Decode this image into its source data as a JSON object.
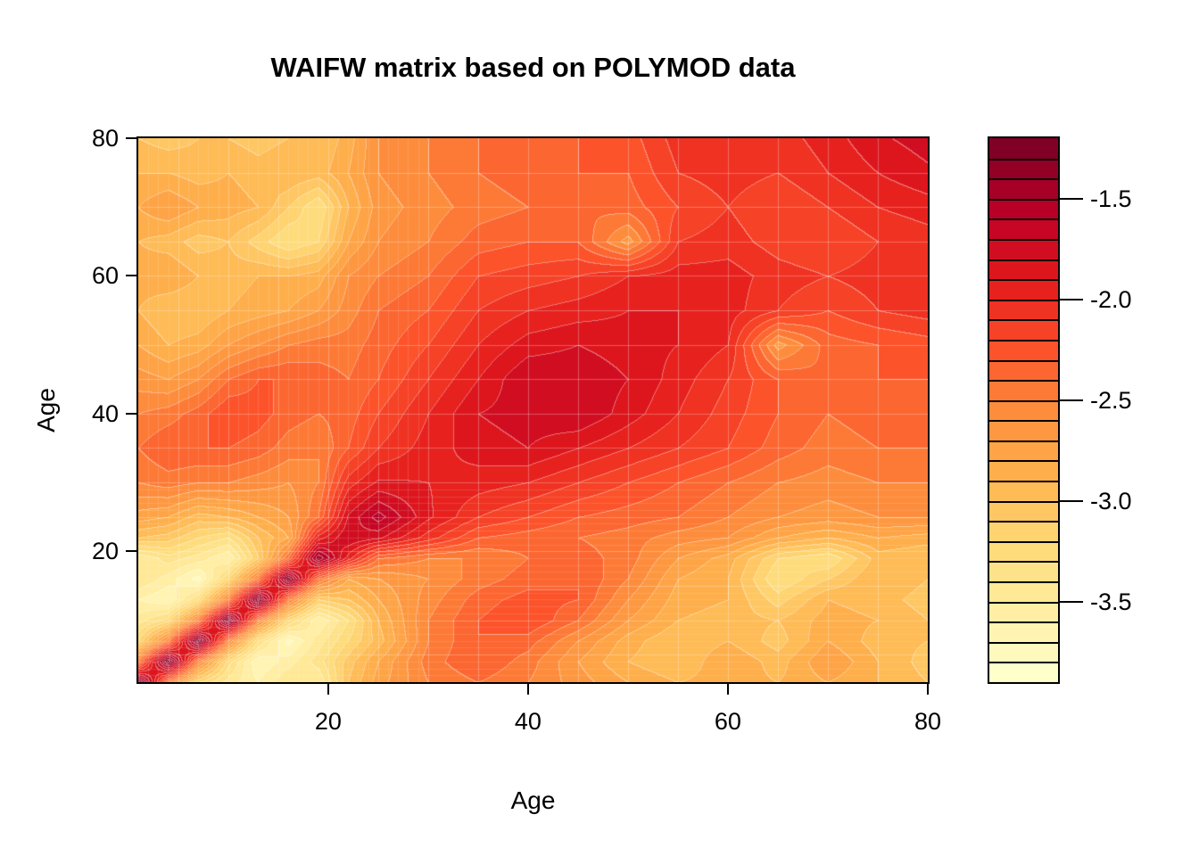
{
  "chart_data": {
    "type": "heatmap",
    "title": "WAIFW matrix based on POLYMOD data",
    "xlabel": "Age",
    "ylabel": "Age",
    "x_range": [
      1,
      80
    ],
    "y_range": [
      1,
      80
    ],
    "x_ticks": [
      20,
      40,
      60,
      80
    ],
    "y_ticks": [
      20,
      40,
      60,
      80
    ],
    "grid": {
      "fine_step": 1,
      "fine_max_age": 30,
      "coarse_step": 5,
      "line_color_fine": "rgba(255,255,255,0.13)",
      "line_color_coarse": "rgba(255,255,255,0.28)"
    },
    "colorbar": {
      "tick_labels": [
        "-1.5",
        "-2.0",
        "-2.5",
        "-3.0",
        "-3.5"
      ],
      "tick_values": [
        -1.5,
        -2.0,
        -2.5,
        -3.0,
        -3.5
      ],
      "level_min": -3.9,
      "level_max": -1.2,
      "level_step": 0.1,
      "n_blocks": 27,
      "palette": [
        "#FFFFCC",
        "#FFEDA0",
        "#FED976",
        "#FEB24C",
        "#FD8D3C",
        "#FC4E2A",
        "#E31A1C",
        "#BD0026",
        "#800026"
      ]
    },
    "ages": [
      1,
      4,
      7,
      10,
      13,
      16,
      19,
      22,
      25,
      30,
      35,
      40,
      45,
      50,
      55,
      60,
      65,
      70,
      75,
      80
    ],
    "matrix": [
      [
        -1.22,
        -2.5,
        -3.2,
        -3.45,
        -3.6,
        -3.4,
        -3.5,
        -3.0,
        -2.75,
        -2.5,
        -2.4,
        -2.5,
        -2.65,
        -2.8,
        -2.9,
        -2.85,
        -2.9,
        -2.8,
        -2.9,
        -3.0
      ],
      [
        -2.5,
        -1.22,
        -2.5,
        -3.25,
        -3.7,
        -3.55,
        -3.35,
        -3.05,
        -2.8,
        -2.45,
        -2.3,
        -2.45,
        -2.7,
        -2.9,
        -3.0,
        -2.8,
        -2.95,
        -2.7,
        -2.9,
        -3.05
      ],
      [
        -3.2,
        -2.5,
        -1.22,
        -2.5,
        -3.3,
        -3.75,
        -3.45,
        -3.2,
        -2.95,
        -2.5,
        -2.3,
        -2.35,
        -2.6,
        -2.85,
        -3.0,
        -2.9,
        -3.05,
        -2.8,
        -2.95,
        -3.0
      ],
      [
        -3.45,
        -3.25,
        -2.5,
        -1.22,
        -2.5,
        -3.2,
        -3.6,
        -3.3,
        -2.9,
        -2.5,
        -2.3,
        -2.2,
        -2.4,
        -2.7,
        -2.9,
        -2.95,
        -3.0,
        -2.85,
        -2.9,
        -3.0
      ],
      [
        -3.6,
        -3.7,
        -3.3,
        -2.5,
        -1.22,
        -2.45,
        -3.1,
        -3.0,
        -2.8,
        -2.55,
        -2.35,
        -2.25,
        -2.3,
        -2.6,
        -2.85,
        -2.9,
        -3.15,
        -2.9,
        -2.95,
        -3.05
      ],
      [
        -3.4,
        -3.55,
        -3.75,
        -3.2,
        -2.45,
        -1.28,
        -2.4,
        -2.8,
        -2.7,
        -2.6,
        -2.45,
        -2.35,
        -2.3,
        -2.5,
        -2.8,
        -2.9,
        -3.3,
        -3.1,
        -2.9,
        -3.0
      ],
      [
        -3.5,
        -3.35,
        -3.45,
        -3.6,
        -3.1,
        -2.4,
        -1.4,
        -1.95,
        -2.4,
        -2.5,
        -2.5,
        -2.4,
        -2.35,
        -2.45,
        -2.7,
        -2.85,
        -3.2,
        -3.3,
        -2.95,
        -3.0
      ],
      [
        -3.0,
        -3.05,
        -3.2,
        -3.3,
        -3.0,
        -2.8,
        -1.95,
        -1.7,
        -1.78,
        -2.05,
        -2.3,
        -2.35,
        -2.4,
        -2.45,
        -2.55,
        -2.6,
        -2.8,
        -2.9,
        -2.8,
        -2.85
      ],
      [
        -2.75,
        -2.8,
        -2.95,
        -2.9,
        -2.8,
        -2.7,
        -2.4,
        -1.78,
        -1.55,
        -1.88,
        -2.1,
        -2.2,
        -2.3,
        -2.35,
        -2.4,
        -2.5,
        -2.6,
        -2.65,
        -2.6,
        -2.6
      ],
      [
        -2.5,
        -2.45,
        -2.5,
        -2.5,
        -2.55,
        -2.6,
        -2.5,
        -2.05,
        -1.88,
        -1.9,
        -1.95,
        -2.0,
        -2.1,
        -2.2,
        -2.3,
        -2.4,
        -2.5,
        -2.55,
        -2.5,
        -2.5
      ],
      [
        -2.4,
        -2.3,
        -2.3,
        -2.3,
        -2.35,
        -2.45,
        -2.5,
        -2.3,
        -2.1,
        -1.95,
        -1.85,
        -1.8,
        -1.9,
        -2.0,
        -2.1,
        -2.2,
        -2.35,
        -2.45,
        -2.4,
        -2.4
      ],
      [
        -2.5,
        -2.45,
        -2.35,
        -2.2,
        -2.25,
        -2.35,
        -2.4,
        -2.35,
        -2.2,
        -2.0,
        -1.8,
        -1.75,
        -1.7,
        -1.85,
        -2.0,
        -2.15,
        -2.3,
        -2.4,
        -2.35,
        -2.35
      ],
      [
        -2.65,
        -2.7,
        -2.6,
        -2.4,
        -2.3,
        -2.3,
        -2.35,
        -2.4,
        -2.3,
        -2.1,
        -1.9,
        -1.7,
        -1.72,
        -1.8,
        -1.95,
        -2.1,
        -2.3,
        -2.4,
        -2.3,
        -2.3
      ],
      [
        -2.8,
        -2.9,
        -2.85,
        -2.7,
        -2.6,
        -2.5,
        -2.45,
        -2.45,
        -2.35,
        -2.2,
        -2.0,
        -1.85,
        -1.8,
        -1.85,
        -1.9,
        -2.0,
        -2.65,
        -2.35,
        -2.3,
        -2.25
      ],
      [
        -2.9,
        -3.0,
        -3.0,
        -2.9,
        -2.85,
        -2.8,
        -2.7,
        -2.55,
        -2.4,
        -2.3,
        -2.1,
        -2.0,
        -1.95,
        -1.9,
        -1.9,
        -1.95,
        -2.1,
        -2.2,
        -2.1,
        -2.05
      ],
      [
        -2.85,
        -2.8,
        -2.9,
        -2.95,
        -2.9,
        -2.9,
        -2.85,
        -2.6,
        -2.5,
        -2.4,
        -2.2,
        -2.15,
        -2.1,
        -2.0,
        -1.95,
        -1.95,
        -2.05,
        -2.1,
        -2.05,
        -2.0
      ],
      [
        -2.9,
        -2.95,
        -3.05,
        -3.0,
        -3.15,
        -3.3,
        -3.2,
        -2.8,
        -2.6,
        -2.5,
        -2.35,
        -2.3,
        -2.3,
        -2.65,
        -2.1,
        -2.05,
        -2.15,
        -2.2,
        -2.1,
        -2.05
      ],
      [
        -2.8,
        -2.7,
        -2.8,
        -2.85,
        -2.9,
        -3.1,
        -3.3,
        -2.9,
        -2.65,
        -2.55,
        -2.45,
        -2.4,
        -2.4,
        -2.35,
        -2.2,
        -2.1,
        -2.2,
        -2.1,
        -2.0,
        -1.95
      ],
      [
        -2.9,
        -2.9,
        -2.95,
        -2.9,
        -2.95,
        -2.9,
        -2.95,
        -2.8,
        -2.6,
        -2.5,
        -2.4,
        -2.35,
        -2.3,
        -2.3,
        -2.1,
        -2.05,
        -2.1,
        -2.0,
        -1.9,
        -1.82
      ],
      [
        -3.0,
        -3.05,
        -3.0,
        -3.0,
        -3.05,
        -3.0,
        -3.0,
        -2.85,
        -2.6,
        -2.5,
        -2.4,
        -2.35,
        -2.3,
        -2.25,
        -2.05,
        -2.0,
        -2.05,
        -1.95,
        -1.82,
        -1.75
      ]
    ]
  }
}
